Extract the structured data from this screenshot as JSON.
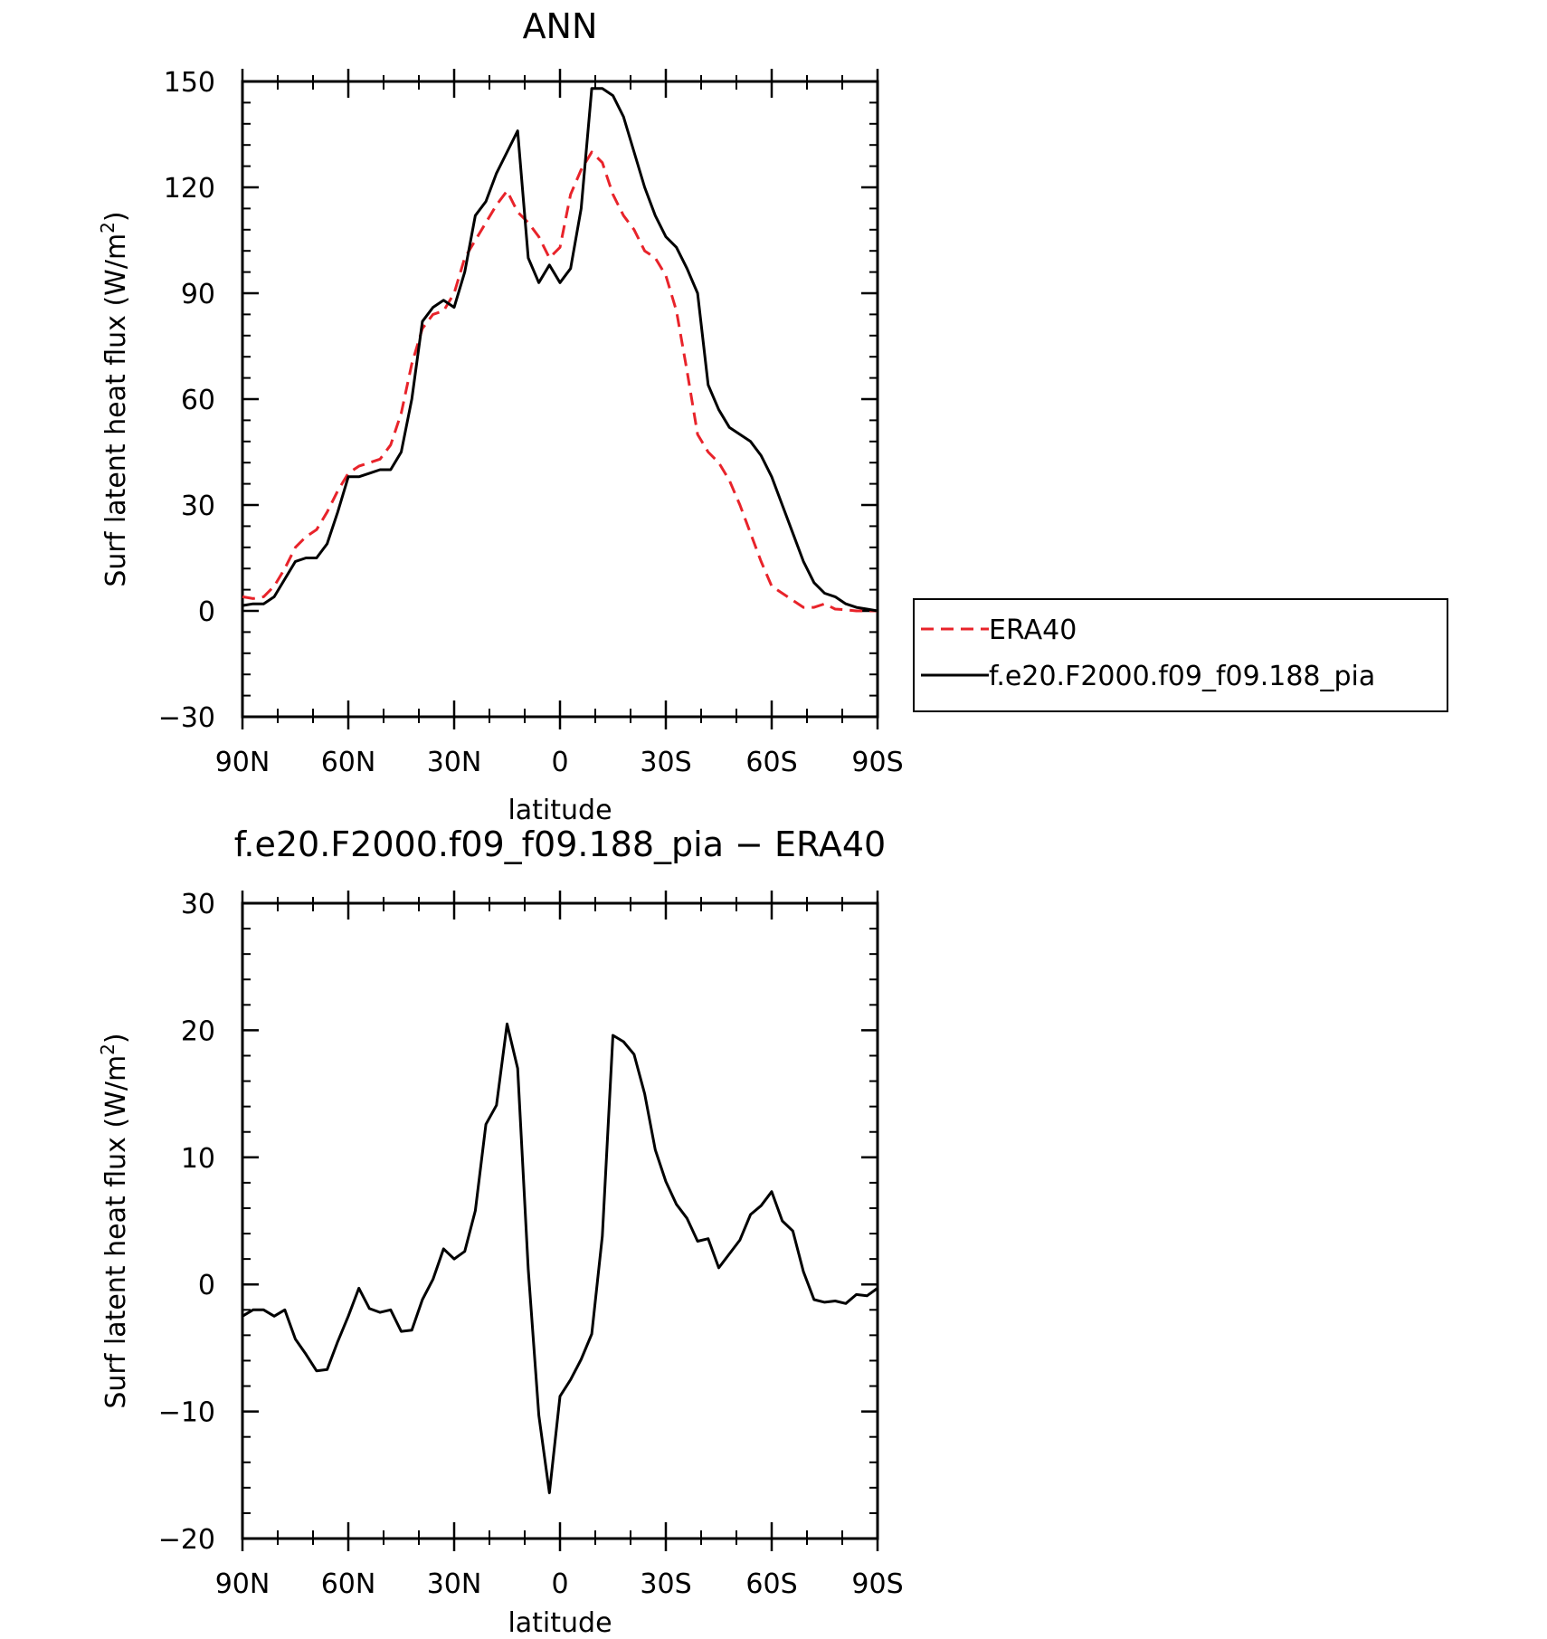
{
  "chart_data": [
    {
      "type": "line",
      "title": "ANN",
      "xlabel": "latitude",
      "ylabel": "Surf latent heat flux (W/m",
      "ylabel_sup": "2",
      "ylabel_close": ")",
      "xlim": [
        -90,
        90
      ],
      "ylim": [
        -30,
        150
      ],
      "yticks": [
        -30,
        0,
        30,
        60,
        90,
        120,
        150
      ],
      "ytick_labels": [
        "−30",
        "0",
        "30",
        "60",
        "90",
        "120",
        "150"
      ],
      "xticks": [
        -90,
        -60,
        -30,
        0,
        30,
        60,
        90
      ],
      "xtick_labels": [
        "90N",
        "60N",
        "30N",
        "0",
        "30S",
        "60S",
        "90S"
      ],
      "legend_position": "right-outside",
      "x": [
        -90,
        -87,
        -84,
        -81,
        -78,
        -75,
        -72,
        -69,
        -66,
        -63,
        -60,
        -57,
        -54,
        -51,
        -48,
        -45,
        -42,
        -39,
        -36,
        -33,
        -30,
        -27,
        -24,
        -21,
        -18,
        -15,
        -12,
        -9,
        -6,
        -3,
        0,
        3,
        6,
        9,
        12,
        15,
        18,
        21,
        24,
        27,
        30,
        33,
        36,
        39,
        42,
        45,
        48,
        51,
        54,
        57,
        60,
        63,
        66,
        69,
        72,
        75,
        78,
        81,
        84,
        87,
        90
      ],
      "series": [
        {
          "name": "ERA40",
          "color": "#e8232a",
          "dash": true,
          "values": [
            4,
            3.5,
            4,
            7,
            12,
            18,
            21,
            23,
            28,
            34,
            39,
            41,
            42,
            43,
            47,
            56,
            70,
            80,
            84,
            85,
            90,
            100,
            105,
            110,
            115,
            119,
            113,
            110,
            106,
            100,
            103,
            118,
            125,
            130,
            127,
            118,
            112,
            108,
            102,
            100,
            95,
            85,
            68,
            50,
            45,
            42,
            37,
            30,
            22,
            14,
            7,
            5,
            3,
            1,
            1,
            2,
            0.5,
            0.3,
            0,
            0,
            0
          ],
          "values_note": ""
        },
        {
          "name": "f.e20.F2000.f09_f09.188_pia",
          "color": "#000000",
          "dash": false,
          "values": [
            1.5,
            2,
            2,
            4,
            9,
            14,
            15,
            15,
            19,
            28,
            38,
            38,
            39,
            40,
            40,
            45,
            60,
            82,
            86,
            88,
            86,
            96,
            112,
            116,
            124,
            130,
            136,
            100,
            93,
            98,
            93,
            97,
            114,
            148,
            148,
            146,
            140,
            130,
            120,
            112,
            106,
            103,
            97,
            90,
            64,
            57,
            52,
            50,
            48,
            44,
            38,
            30,
            22,
            14,
            8,
            5,
            4,
            2,
            1,
            0.5,
            0
          ]
        }
      ]
    },
    {
      "type": "line",
      "title": "f.e20.F2000.f09_f09.188_pia − ERA40",
      "xlabel": "latitude",
      "ylabel": "Surf latent heat flux (W/m",
      "ylabel_sup": "2",
      "ylabel_close": ")",
      "xlim": [
        -90,
        90
      ],
      "ylim": [
        -20,
        30
      ],
      "yticks": [
        -20,
        -10,
        0,
        10,
        20,
        30
      ],
      "ytick_labels": [
        "−20",
        "−10",
        "0",
        "10",
        "20",
        "30"
      ],
      "xticks": [
        -90,
        -60,
        -30,
        0,
        30,
        60,
        90
      ],
      "xtick_labels": [
        "90N",
        "60N",
        "30N",
        "0",
        "30S",
        "60S",
        "90S"
      ],
      "x": [
        -90,
        -87,
        -84,
        -81,
        -78,
        -75,
        -72,
        -69,
        -66,
        -63,
        -60,
        -57,
        -54,
        -51,
        -48,
        -45,
        -42,
        -39,
        -36,
        -33,
        -30,
        -27,
        -24,
        -21,
        -18,
        -15,
        -12,
        -9,
        -6,
        -3,
        0,
        3,
        6,
        9,
        12,
        15,
        18,
        21,
        24,
        27,
        30,
        33,
        36,
        39,
        42,
        45,
        48,
        51,
        54,
        57,
        60,
        63,
        66,
        69,
        72,
        75,
        78,
        81,
        84,
        87,
        90
      ],
      "series": [
        {
          "name": "",
          "color": "#000000",
          "dash": false,
          "values": [
            -2.5,
            -2,
            -2,
            -2.5,
            -2,
            -4.3,
            -5.5,
            -6.8,
            -6.7,
            -4.5,
            -2.5,
            -0.3,
            -1.9,
            -2.2,
            -2,
            -3.7,
            -3.6,
            -1.2,
            0.4,
            2.8,
            2.0,
            2.6,
            5.8,
            12.6,
            14.1,
            20.5,
            17.0,
            1.2,
            -10.3,
            -16.4,
            -8.8,
            -7.5,
            -5.9,
            -3.9,
            3.8,
            19.6,
            19.1,
            18.1,
            15.0,
            10.6,
            8.1,
            6.3,
            5.2,
            3.4,
            3.6,
            1.3,
            2.4,
            3.5,
            5.5,
            6.2,
            7.3,
            5.0,
            4.2,
            1.0,
            -1.2,
            -1.4,
            -1.3,
            -1.5,
            -0.8,
            -0.9,
            -0.3
          ]
        }
      ]
    }
  ]
}
